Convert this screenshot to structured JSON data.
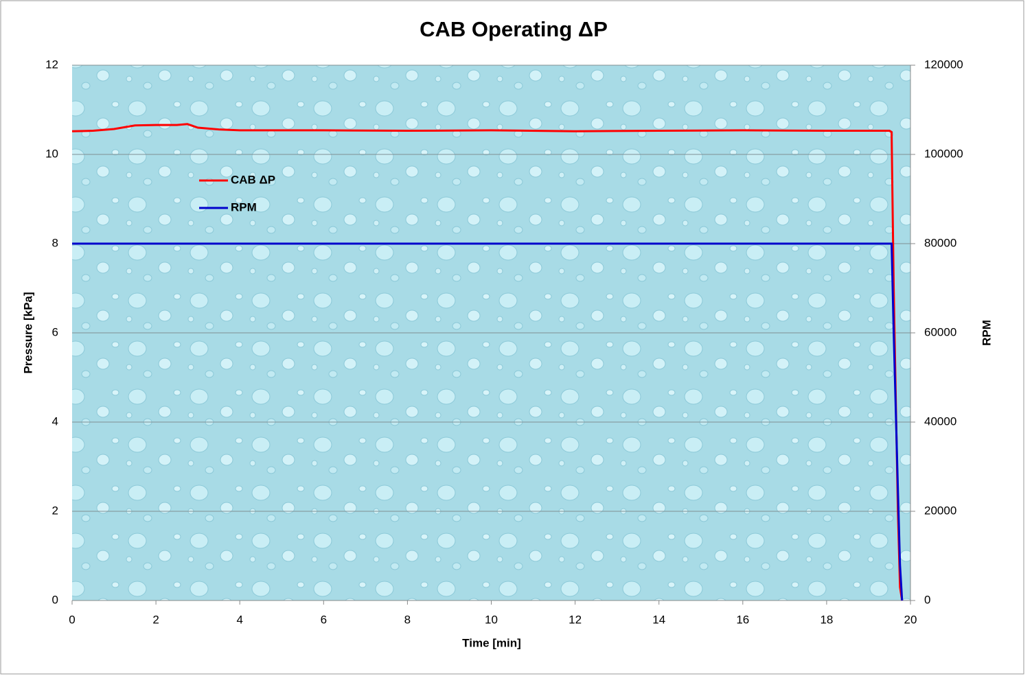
{
  "chart_data": {
    "type": "line",
    "title": "CAB Operating ΔP",
    "x_label": "Time [min]",
    "y_label": "Pressure [kPa]",
    "y2_label": "RPM",
    "x": [
      0,
      0.5,
      1,
      1.5,
      2,
      2.5,
      2.75,
      3,
      3.5,
      4,
      6,
      8,
      10,
      12,
      14,
      16,
      18,
      19.5,
      19.55,
      19.6,
      19.7,
      19.75,
      19.8
    ],
    "series": [
      {
        "name": "CAB ΔP",
        "color": "#ff0000",
        "values": [
          10.52,
          10.53,
          10.57,
          10.65,
          10.66,
          10.66,
          10.68,
          10.6,
          10.56,
          10.54,
          10.54,
          10.53,
          10.54,
          10.52,
          10.53,
          10.54,
          10.53,
          10.53,
          10.5,
          7,
          2,
          0.3,
          0
        ]
      },
      {
        "name": "RPM",
        "color": "#0000cc",
        "axis": "y2",
        "values": [
          80000,
          80000,
          80000,
          80000,
          80000,
          80000,
          80000,
          80000,
          80000,
          80000,
          80000,
          80000,
          80000,
          80000,
          80000,
          80000,
          80000,
          80000,
          80000,
          60000,
          25000,
          8000,
          0
        ]
      }
    ],
    "xlim": [
      0,
      20
    ],
    "xticks": [
      0,
      2,
      4,
      6,
      8,
      10,
      12,
      14,
      16,
      18,
      20
    ],
    "ylim": [
      0,
      12
    ],
    "yticks": [
      0,
      2,
      4,
      6,
      8,
      10,
      12
    ],
    "y2lim": [
      0,
      120000
    ],
    "y2ticks": [
      0,
      20000,
      40000,
      60000,
      80000,
      100000,
      120000
    ],
    "grid": true
  }
}
